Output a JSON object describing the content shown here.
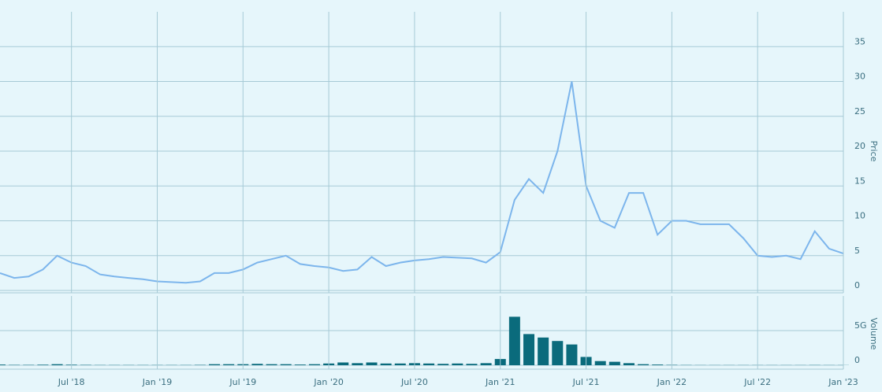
{
  "chart_data": [
    {
      "type": "line",
      "ylabel": "Price",
      "x": [
        "2018-02",
        "2018-03",
        "2018-04",
        "2018-05",
        "2018-06",
        "2018-07",
        "2018-08",
        "2018-09",
        "2018-10",
        "2018-11",
        "2018-12",
        "2019-01",
        "2019-02",
        "2019-03",
        "2019-04",
        "2019-05",
        "2019-06",
        "2019-07",
        "2019-08",
        "2019-09",
        "2019-10",
        "2019-11",
        "2019-12",
        "2020-01",
        "2020-02",
        "2020-03",
        "2020-04",
        "2020-05",
        "2020-06",
        "2020-07",
        "2020-08",
        "2020-09",
        "2020-10",
        "2020-11",
        "2020-12",
        "2021-01",
        "2021-02",
        "2021-03",
        "2021-04",
        "2021-05",
        "2021-06",
        "2021-07",
        "2021-08",
        "2021-09",
        "2021-10",
        "2021-11",
        "2021-12",
        "2022-01",
        "2022-02",
        "2022-03",
        "2022-04",
        "2022-05",
        "2022-06",
        "2022-07",
        "2022-08",
        "2022-09",
        "2022-10",
        "2022-11",
        "2022-12",
        "2023-01"
      ],
      "series": [
        {
          "name": "Price",
          "color": "#7cb5ec",
          "values": [
            2.5,
            1.8,
            2.0,
            3.0,
            5.0,
            4.0,
            3.5,
            2.3,
            2.0,
            1.8,
            1.6,
            1.3,
            1.2,
            1.1,
            1.3,
            2.5,
            2.5,
            3.0,
            4.0,
            4.5,
            5.0,
            3.8,
            3.5,
            3.3,
            2.8,
            3.0,
            4.8,
            3.5,
            4.0,
            4.3,
            4.5,
            4.8,
            4.7,
            4.6,
            4.0,
            5.5,
            13,
            16,
            14,
            20,
            30,
            15,
            10,
            9,
            14,
            14,
            8,
            10,
            10,
            9.5,
            9.5,
            9.5,
            7.5,
            5,
            4.8,
            5,
            4.5,
            8.5,
            6,
            5.3
          ]
        }
      ],
      "xlim": [
        "2018-02",
        "2023-01"
      ],
      "ylim": [
        0,
        40
      ],
      "yticks": [
        0,
        5,
        10,
        15,
        20,
        25,
        30,
        35
      ],
      "grid": true
    },
    {
      "type": "bar",
      "ylabel": "Volume",
      "color": "#0a6b7c",
      "x": [
        "2018-02",
        "2018-03",
        "2018-04",
        "2018-05",
        "2018-06",
        "2018-07",
        "2018-08",
        "2018-09",
        "2018-10",
        "2018-11",
        "2018-12",
        "2019-01",
        "2019-02",
        "2019-03",
        "2019-04",
        "2019-05",
        "2019-06",
        "2019-07",
        "2019-08",
        "2019-09",
        "2019-10",
        "2019-11",
        "2019-12",
        "2020-01",
        "2020-02",
        "2020-03",
        "2020-04",
        "2020-05",
        "2020-06",
        "2020-07",
        "2020-08",
        "2020-09",
        "2020-10",
        "2020-11",
        "2020-12",
        "2021-01",
        "2021-02",
        "2021-03",
        "2021-04",
        "2021-05",
        "2021-06",
        "2021-07",
        "2021-08",
        "2021-09",
        "2021-10",
        "2021-11",
        "2021-12",
        "2022-01",
        "2022-02",
        "2022-03",
        "2022-04",
        "2022-05",
        "2022-06",
        "2022-07",
        "2022-08",
        "2022-09",
        "2022-10",
        "2022-11",
        "2022-12",
        "2023-01"
      ],
      "values": [
        100000000,
        50000000,
        50000000,
        80000000,
        150000000,
        80000000,
        50000000,
        30000000,
        30000000,
        30000000,
        30000000,
        30000000,
        30000000,
        30000000,
        50000000,
        150000000,
        150000000,
        150000000,
        200000000,
        150000000,
        150000000,
        100000000,
        150000000,
        250000000,
        400000000,
        300000000,
        400000000,
        250000000,
        250000000,
        300000000,
        250000000,
        200000000,
        250000000,
        200000000,
        300000000,
        900000000,
        7000000000,
        4500000000,
        4000000000,
        3500000000,
        3000000000,
        1200000000,
        600000000,
        500000000,
        300000000,
        150000000,
        100000000,
        50000000,
        30000000,
        20000000,
        20000000,
        20000000,
        20000000,
        20000000,
        20000000,
        20000000,
        20000000,
        30000000,
        20000000,
        20000000
      ],
      "xlim": [
        "2018-02",
        "2023-01"
      ],
      "ylim": [
        0,
        10000000000
      ],
      "yticks": [
        0,
        {
          "value": 5000000000,
          "label": "5G"
        }
      ],
      "xticks": [
        {
          "value": "2018-07",
          "label": "Jul '18"
        },
        {
          "value": "2019-01",
          "label": "Jan '19"
        },
        {
          "value": "2019-07",
          "label": "Jul '19"
        },
        {
          "value": "2020-01",
          "label": "Jan '20"
        },
        {
          "value": "2020-07",
          "label": "Jul '20"
        },
        {
          "value": "2021-01",
          "label": "Jan '21"
        },
        {
          "value": "2021-07",
          "label": "Jul '21"
        },
        {
          "value": "2022-01",
          "label": "Jan '22"
        },
        {
          "value": "2022-07",
          "label": "Jul '22"
        },
        {
          "value": "2023-01",
          "label": "Jan '23"
        }
      ]
    }
  ]
}
